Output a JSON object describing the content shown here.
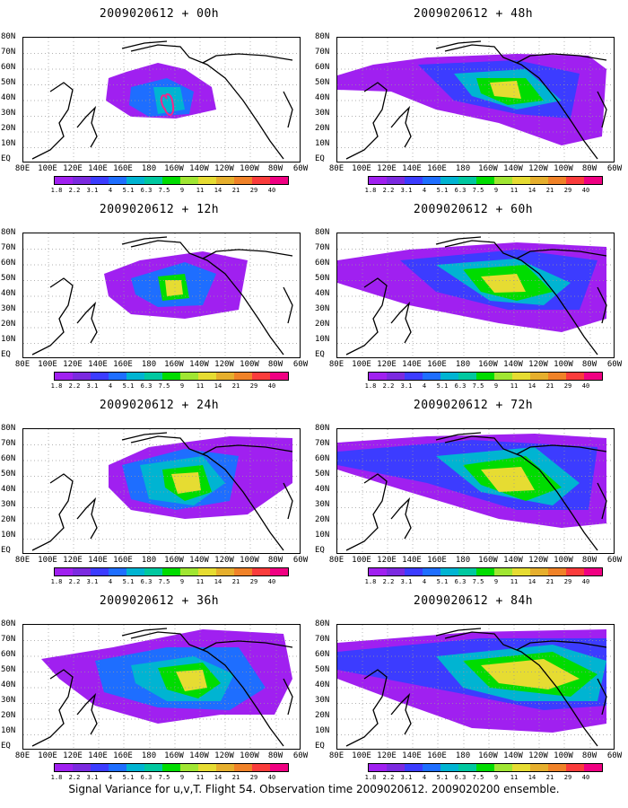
{
  "panels": [
    {
      "title": "2009020612 + 00h",
      "lead": "00h"
    },
    {
      "title": "2009020612 + 48h",
      "lead": "48h"
    },
    {
      "title": "2009020612 + 12h",
      "lead": "12h"
    },
    {
      "title": "2009020612 + 60h",
      "lead": "60h"
    },
    {
      "title": "2009020612 + 24h",
      "lead": "24h"
    },
    {
      "title": "2009020612 + 72h",
      "lead": "72h"
    },
    {
      "title": "2009020612 + 36h",
      "lead": "36h"
    },
    {
      "title": "2009020612 + 84h",
      "lead": "84h"
    }
  ],
  "lat_labels": [
    "80N",
    "70N",
    "60N",
    "50N",
    "40N",
    "30N",
    "20N",
    "10N",
    "EQ"
  ],
  "lon_labels": [
    "80E",
    "100E",
    "120E",
    "140E",
    "160E",
    "180",
    "160W",
    "140W",
    "120W",
    "100W",
    "80W",
    "60W"
  ],
  "colorbar": {
    "colors": [
      "#a020f0",
      "#7b2ae0",
      "#3c3cff",
      "#1e6eff",
      "#00b4d2",
      "#00c8a0",
      "#00dc00",
      "#a0e632",
      "#e6dc32",
      "#e6af2d",
      "#f08228",
      "#fa3c3c",
      "#f00082"
    ],
    "labels": [
      "1.8",
      "2.2",
      "3.1",
      "4",
      "5.1",
      "6.3",
      "7.5",
      "9",
      "11",
      "14",
      "21",
      "29",
      "40"
    ]
  },
  "caption": "Signal Variance for u,v,T. Flight 54. Observation time 2009020612. 2009020200 ensemble.",
  "colors": {
    "flight_track": "#f0288c",
    "coastline": "#000000",
    "grid": "#999999"
  }
}
